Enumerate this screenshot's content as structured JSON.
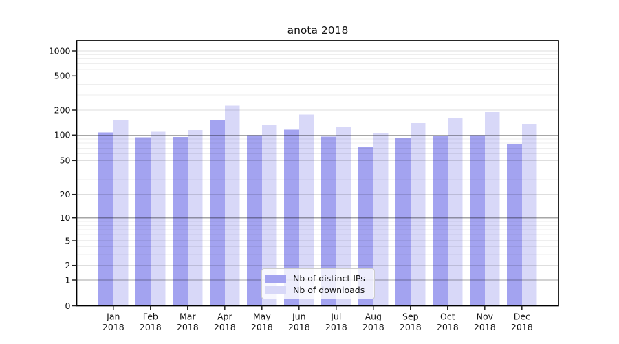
{
  "chart_data": {
    "type": "bar",
    "title": "anota 2018",
    "categories": [
      "Jan 2018",
      "Feb 2018",
      "Mar 2018",
      "Apr 2018",
      "May 2018",
      "Jun 2018",
      "Jul 2018",
      "Aug 2018",
      "Sep 2018",
      "Oct 2018",
      "Nov 2018",
      "Dec 2018"
    ],
    "series": [
      {
        "name": "Nb of distinct IPs",
        "color": "#a3a3f0",
        "values": [
          108,
          94,
          95,
          152,
          100,
          116,
          96,
          73,
          93,
          97,
          100,
          78
        ]
      },
      {
        "name": "Nb of downloads",
        "color": "#d8d8f8",
        "values": [
          150,
          110,
          115,
          225,
          131,
          177,
          126,
          105,
          139,
          161,
          189,
          137
        ]
      }
    ],
    "xlabel": "",
    "ylabel": "",
    "yscale": "symlog",
    "y_ticks": [
      0,
      1,
      2,
      5,
      10,
      20,
      50,
      100,
      200,
      500,
      1000
    ],
    "y_minor_ticks": [
      3,
      4,
      6,
      7,
      8,
      9,
      30,
      40,
      60,
      70,
      80,
      90,
      300,
      400,
      600,
      700,
      800,
      900
    ],
    "ylim": [
      0,
      1150
    ],
    "grid": true,
    "legend_position": "lower center"
  },
  "colors": {
    "grid_major": "rgba(0,0,0,0.35)",
    "grid_labeled": "rgba(0,0,0,0.13)",
    "grid_minor": "rgba(0,0,0,0.065)",
    "spine": "#000000",
    "tick": "#222222",
    "text": "#111111"
  }
}
